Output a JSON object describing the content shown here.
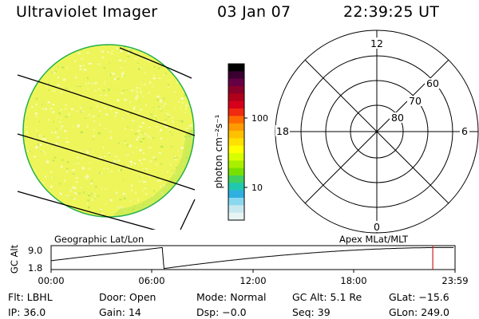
{
  "header": {
    "instrument": "Ultraviolet Imager",
    "date": "03 Jan 07",
    "time": "22:39:25 UT"
  },
  "colorbar": {
    "unit_label": "photon cm⁻²s⁻¹",
    "ticks": [
      "100",
      "10"
    ],
    "colors": [
      "#000000",
      "#3a0030",
      "#660044",
      "#8a0028",
      "#b0001a",
      "#d6001a",
      "#f02a10",
      "#ff6a00",
      "#ff9a00",
      "#ffc000",
      "#ffe000",
      "#ffff00",
      "#d8ff00",
      "#a8f000",
      "#78e000",
      "#40d060",
      "#20c8b0",
      "#30b0e0",
      "#8ad8f0",
      "#c8e8f0",
      "#e8f4f4"
    ]
  },
  "image": {
    "fill_color": "#eef55a",
    "speckle_color": "#f9fbd2",
    "edge_color": "#b9e653",
    "rim_color": "#22b04a"
  },
  "polar_grid": {
    "hour_labels": {
      "top": "12",
      "left": "18",
      "right": "6",
      "bottom": "0"
    },
    "lat_labels": [
      "80",
      "70",
      "60"
    ]
  },
  "orbit_plot": {
    "left_title": "Geographic Lat/Lon",
    "right_title": "Apex MLat/MLT",
    "ylabel": "GC Alt",
    "y_ticks": [
      "9.0",
      "1.8"
    ],
    "x_ticks": [
      "00:00",
      "06:00",
      "12:00",
      "18:00",
      "23:59"
    ],
    "marker_time_hours": 22.66,
    "marker_color": "#cc2222"
  },
  "status": {
    "row1": [
      {
        "label": "Flt:",
        "value": "LBHL"
      },
      {
        "label": "Door:",
        "value": "Open"
      },
      {
        "label": "Mode:",
        "value": "Normal"
      },
      {
        "label": "GC Alt:",
        "value": "5.1 Re"
      },
      {
        "label": "GLat:",
        "value": "−15.6"
      }
    ],
    "row2": [
      {
        "label": "IP:",
        "value": "36.0"
      },
      {
        "label": "Gain:",
        "value": "14"
      },
      {
        "label": "Dsp:",
        "value": "−0.0"
      },
      {
        "label": "Seq:",
        "value": "39"
      },
      {
        "label": "GLon:",
        "value": "249.0"
      }
    ]
  }
}
